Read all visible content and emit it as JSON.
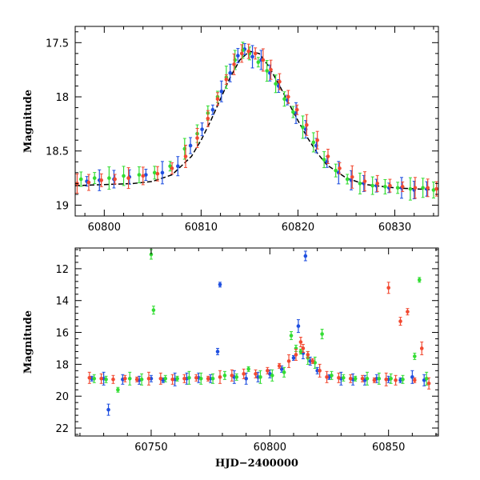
{
  "chart_data": [
    {
      "type": "scatter",
      "title": "",
      "xlabel": "",
      "ylabel": "Magnitude",
      "xlim": [
        60797,
        60834.5
      ],
      "ylim": [
        19.1,
        17.35
      ],
      "y_inverted": true,
      "xticks": [
        60800,
        60810,
        60820,
        60830
      ],
      "yticks": [
        17.5,
        18,
        18.5,
        19
      ],
      "grid": false,
      "legend": "none",
      "error_bars": true,
      "series": [
        {
          "color": "#1f4fe0",
          "x": [
            60798.2,
            60799.5,
            60801.0,
            60802.6,
            60804.3,
            60806.0,
            60807.6,
            60808.9,
            60810.1,
            60811.2,
            60812.1,
            60813.0,
            60813.8,
            60814.5,
            60815.3,
            60816.2,
            60817.1,
            60818.0,
            60818.9,
            60819.8,
            60820.8,
            60821.9,
            60823.0,
            60824.2,
            60825.5,
            60826.8,
            60828.1,
            60829.4,
            60830.7,
            60832.0,
            60833.3
          ],
          "y": [
            18.78,
            18.77,
            18.76,
            18.74,
            18.72,
            18.7,
            18.64,
            18.45,
            18.3,
            18.12,
            17.95,
            17.78,
            17.62,
            17.56,
            17.63,
            17.66,
            17.78,
            17.9,
            18.03,
            18.15,
            18.3,
            18.45,
            18.6,
            18.7,
            18.77,
            18.8,
            18.82,
            18.84,
            18.84,
            18.86,
            18.85
          ]
        },
        {
          "color": "#33dd33",
          "x": [
            60797.6,
            60799.0,
            60800.5,
            60802.0,
            60803.6,
            60805.2,
            60806.8,
            60808.3,
            60809.6,
            60810.7,
            60811.7,
            60812.6,
            60813.5,
            60814.3,
            60815.0,
            60815.9,
            60816.8,
            60817.7,
            60818.6,
            60819.5,
            60820.5,
            60821.6,
            60822.7,
            60823.9,
            60825.1,
            60826.4,
            60827.7,
            60829.0,
            60830.3,
            60831.6,
            60832.9,
            60834.0
          ],
          "y": [
            18.76,
            18.75,
            18.75,
            18.73,
            18.72,
            18.7,
            18.64,
            18.48,
            18.34,
            18.15,
            18.0,
            17.82,
            17.66,
            17.57,
            17.6,
            17.68,
            17.76,
            17.88,
            18.02,
            18.14,
            18.28,
            18.42,
            18.58,
            18.68,
            18.76,
            18.8,
            18.82,
            18.83,
            18.84,
            18.85,
            18.84,
            18.86
          ]
        },
        {
          "color": "#f24a32",
          "x": [
            60797.2,
            60798.4,
            60799.7,
            60801.1,
            60802.5,
            60804.0,
            60805.5,
            60807.0,
            60808.4,
            60809.6,
            60810.7,
            60811.7,
            60812.6,
            60813.4,
            60814.2,
            60814.9,
            60815.6,
            60816.4,
            60817.2,
            60818.1,
            60819.0,
            60819.9,
            60820.9,
            60822.0,
            60823.1,
            60824.3,
            60825.6,
            60826.9,
            60828.2,
            60829.5,
            60830.8,
            60832.1,
            60833.4,
            60834.3
          ],
          "y": [
            18.8,
            18.79,
            18.77,
            18.76,
            18.75,
            18.73,
            18.71,
            18.66,
            18.55,
            18.38,
            18.2,
            18.02,
            17.84,
            17.7,
            17.6,
            17.58,
            17.6,
            17.66,
            17.75,
            17.86,
            18.0,
            18.12,
            18.26,
            18.4,
            18.55,
            18.66,
            18.74,
            18.78,
            18.8,
            18.82,
            18.83,
            18.84,
            18.84,
            18.85
          ]
        }
      ],
      "model_curve": {
        "color": "#000000",
        "x": [
          60797,
          60800,
          60803,
          60805,
          60807,
          60809,
          60810,
          60811,
          60812,
          60813,
          60814,
          60815,
          60816,
          60817,
          60818,
          60819,
          60820,
          60821,
          60822,
          60823,
          60825,
          60827,
          60830,
          60834.5
        ],
        "y": [
          18.82,
          18.81,
          18.8,
          18.78,
          18.72,
          18.55,
          18.4,
          18.22,
          18.02,
          17.82,
          17.66,
          17.58,
          17.6,
          17.72,
          17.88,
          18.05,
          18.22,
          18.38,
          18.52,
          18.63,
          18.75,
          18.81,
          18.84,
          18.86
        ]
      }
    },
    {
      "type": "scatter",
      "title": "",
      "xlabel": "HJD−2400000",
      "ylabel": "Magnitude",
      "xlim": [
        60718,
        60871
      ],
      "ylim": [
        22.5,
        10.7
      ],
      "y_inverted": true,
      "xticks": [
        60750,
        60800,
        60850
      ],
      "yticks": [
        12,
        14,
        16,
        18,
        20,
        22
      ],
      "grid": false,
      "legend": "none",
      "error_bars": true,
      "series": [
        {
          "color": "#1f4fe0",
          "x": [
            60725,
            60730,
            60732,
            60738,
            60745,
            60750,
            60755,
            60760,
            60765,
            60770,
            60775,
            60778,
            60779,
            60785,
            60790,
            60795,
            60800,
            60805,
            60810,
            60812,
            60814,
            60815,
            60817,
            60820,
            60825,
            60830,
            60835,
            60840,
            60845,
            60850,
            60855,
            60860,
            60865
          ],
          "y": [
            18.9,
            18.9,
            20.85,
            18.95,
            19.0,
            18.9,
            19.0,
            18.95,
            18.9,
            18.85,
            18.9,
            17.2,
            13.0,
            18.8,
            18.9,
            18.8,
            18.6,
            18.3,
            17.6,
            15.6,
            17.3,
            11.2,
            17.8,
            18.4,
            18.8,
            18.9,
            18.95,
            19.0,
            18.9,
            18.95,
            19.0,
            18.8,
            19.0
          ]
        },
        {
          "color": "#33dd33",
          "x": [
            60726,
            60731,
            60736,
            60741,
            60746,
            60750,
            60751,
            60756,
            60761,
            60766,
            60771,
            60776,
            60781,
            60786,
            60791,
            60796,
            60801,
            60806,
            60809,
            60811,
            60813,
            60816,
            60819,
            60822,
            60826,
            60831,
            60836,
            60841,
            60846,
            60851,
            60856,
            60861,
            60863,
            60866
          ],
          "y": [
            18.9,
            18.95,
            19.6,
            18.9,
            18.95,
            11.1,
            14.6,
            18.9,
            18.9,
            18.85,
            18.9,
            18.9,
            18.7,
            18.8,
            18.3,
            18.8,
            18.7,
            18.5,
            16.2,
            17.0,
            17.2,
            17.6,
            17.9,
            16.1,
            18.7,
            18.85,
            18.9,
            18.9,
            18.9,
            18.9,
            18.95,
            17.5,
            12.7,
            18.9
          ]
        },
        {
          "color": "#f24a32",
          "x": [
            60724,
            60729,
            60734,
            60739,
            60744,
            60749,
            60754,
            60759,
            60764,
            60769,
            60774,
            60779,
            60784,
            60789,
            60794,
            60799,
            60804,
            60808,
            60811,
            60813,
            60814,
            60816,
            60818,
            60821,
            60824,
            60829,
            60834,
            60839,
            60844,
            60849,
            60850,
            60853,
            60855,
            60858,
            60861,
            60864,
            60867
          ],
          "y": [
            18.85,
            18.9,
            18.95,
            18.9,
            18.95,
            18.9,
            18.9,
            18.95,
            18.9,
            18.85,
            18.9,
            18.8,
            18.7,
            18.6,
            18.6,
            18.4,
            18.1,
            17.8,
            17.4,
            16.6,
            17.0,
            17.4,
            17.8,
            18.4,
            18.8,
            18.85,
            18.9,
            18.9,
            19.0,
            18.95,
            13.2,
            19.0,
            15.3,
            14.7,
            19.0,
            17.0,
            19.2
          ]
        }
      ]
    }
  ]
}
